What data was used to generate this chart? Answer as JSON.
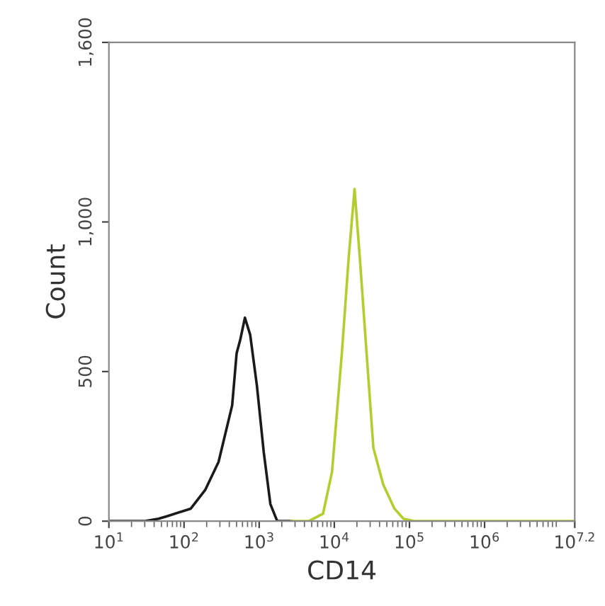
{
  "chart_data": {
    "type": "line",
    "xlabel": "CD14",
    "ylabel": "Count",
    "log": "x",
    "grid": false,
    "legend": false,
    "marker": "none",
    "line_style": "solid",
    "xlim": [
      10,
      15848932
    ],
    "xticks": [
      {
        "value": 10,
        "label": "10$^{1}$"
      },
      {
        "value": 100,
        "label": "10$^{2}$"
      },
      {
        "value": 1000,
        "label": "10$^{3}$"
      },
      {
        "value": 10000,
        "label": "10$^{4}$"
      },
      {
        "value": 100000,
        "label": "10$^{5}$"
      },
      {
        "value": 1000000,
        "label": "10$^{6}$"
      },
      {
        "value": 15848932,
        "label": "10$^{7.2}$"
      }
    ],
    "ylim": [
      0,
      1600
    ],
    "yticks": [
      0,
      500,
      {
        "value": 1000,
        "label": "1,000"
      },
      {
        "value": 1600,
        "label": "1,600"
      }
    ],
    "series": [
      {
        "color": "#1a1a1a",
        "x": [
          10,
          29.5,
          45.7,
          60.3,
          123,
          191,
          288,
          437,
          501,
          562,
          646,
          759,
          933,
          1150,
          1410,
          1740,
          2690
        ],
        "values": [
          0,
          0,
          8,
          17,
          42,
          104,
          198,
          387,
          561,
          608,
          680,
          623,
          453,
          231,
          57,
          0,
          0
        ]
      },
      {
        "color": "#b5cc2e",
        "x": [
          2690,
          4570,
          7080,
          9330,
          12600,
          15500,
          18600,
          21900,
          26900,
          33100,
          44700,
          63100,
          83200,
          117000,
          15848932
        ],
        "values": [
          0,
          0,
          25,
          165,
          561,
          877,
          1110,
          877,
          561,
          245,
          123,
          42,
          8,
          0,
          0
        ]
      }
    ]
  }
}
